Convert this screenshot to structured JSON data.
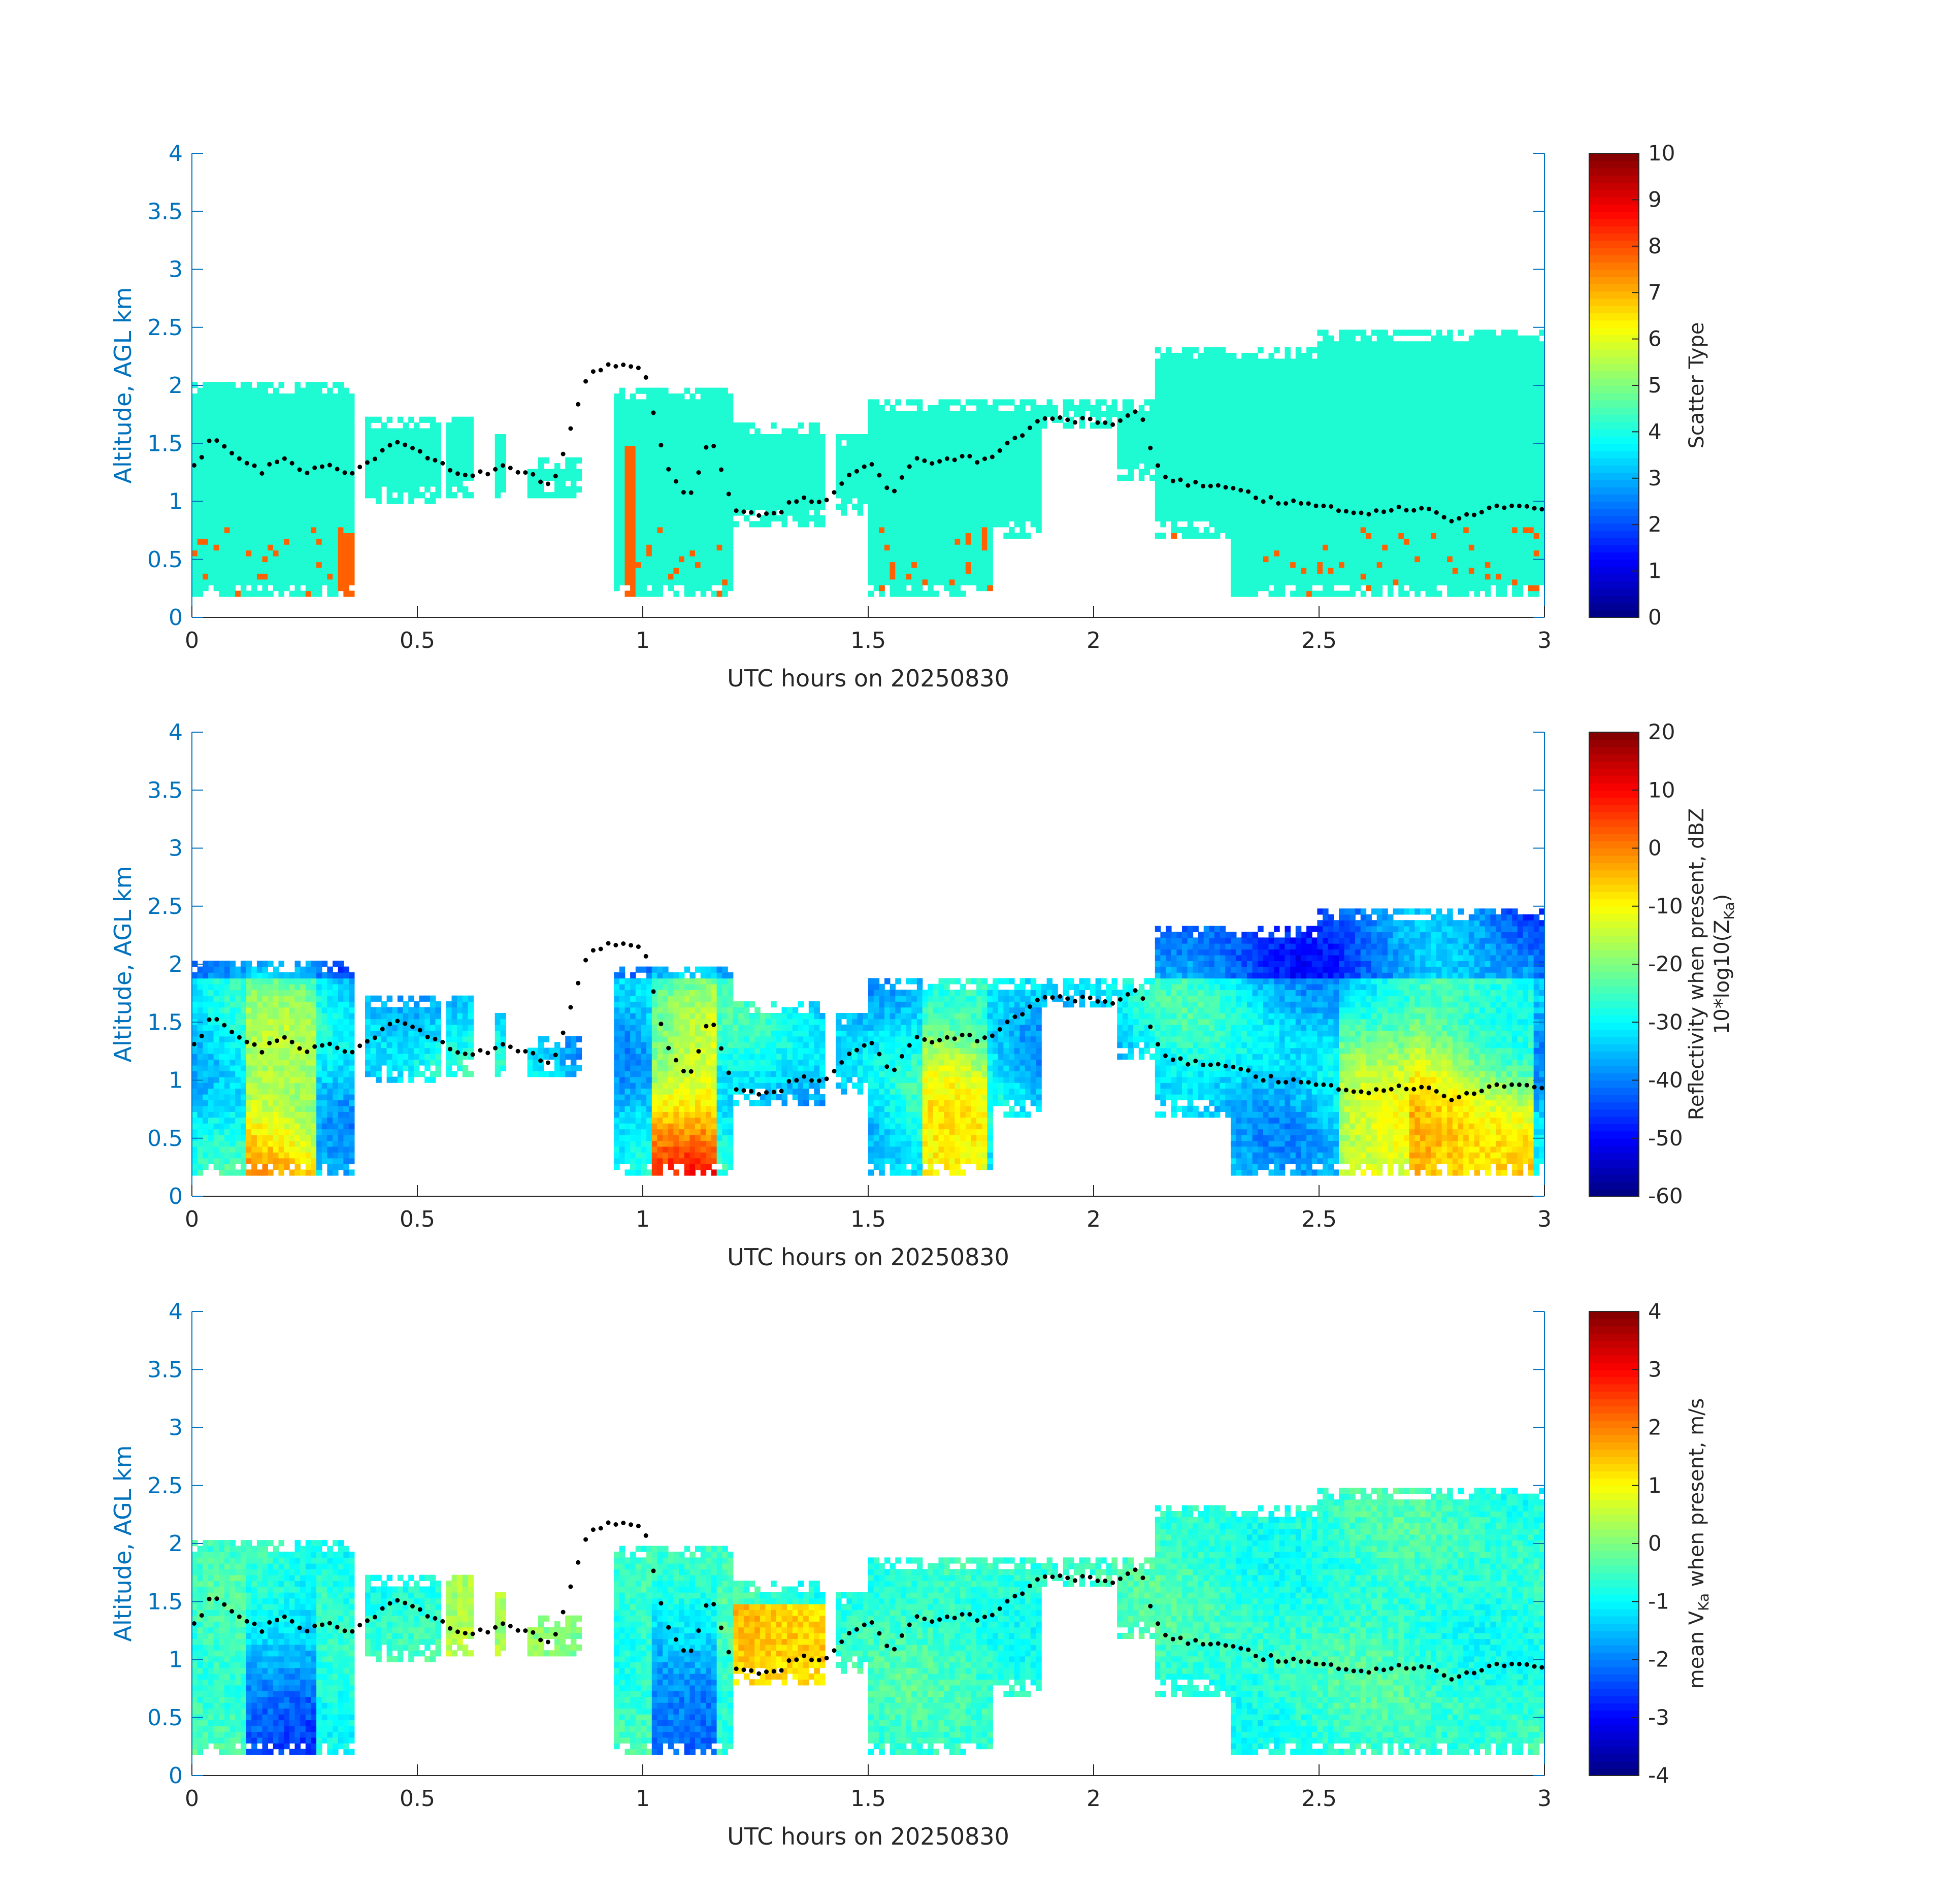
{
  "colors": {
    "axis_y": "#0072BD",
    "axis_x": "#262626",
    "bins": "#1efad2",
    "marker": "#000000"
  },
  "chart_data": [
    {
      "type": "heatmap",
      "xlabel": "UTC hours on 20250830",
      "ylabel": "Altitude, AGL km",
      "xlim": [
        0,
        3
      ],
      "ylim": [
        0,
        4
      ],
      "xticks": [
        "0",
        "0.5",
        "1",
        "1.5",
        "2",
        "2.5",
        "3"
      ],
      "yticks": [
        "0",
        "0.5",
        "1",
        "1.5",
        "2",
        "2.5",
        "3",
        "3.5",
        "4"
      ],
      "colorbar": {
        "label": "Scatter Type",
        "clim": [
          0,
          10
        ],
        "ticks": [
          "0",
          "1",
          "2",
          "3",
          "4",
          "5",
          "6",
          "7",
          "8",
          "9",
          "10"
        ]
      },
      "field": "scatter_type"
    },
    {
      "type": "heatmap",
      "xlabel": "UTC hours on 20250830",
      "ylabel": "Altitude, AGL km",
      "xlim": [
        0,
        3
      ],
      "ylim": [
        0,
        4
      ],
      "xticks": [
        "0",
        "0.5",
        "1",
        "1.5",
        "2",
        "2.5",
        "3"
      ],
      "yticks": [
        "0",
        "0.5",
        "1",
        "1.5",
        "2",
        "2.5",
        "3",
        "3.5",
        "4"
      ],
      "colorbar": {
        "label_line1": "Reflectivity when present, dBZ",
        "label_line2_pre": "10*log10(Z",
        "label_line2_sub": "Ka",
        "label_line2_post": ")",
        "clim": [
          -60,
          20
        ],
        "ticks": [
          "-60",
          "-50",
          "-40",
          "-30",
          "-20",
          "-10",
          "0",
          "10",
          "20"
        ]
      },
      "field": "reflectivity"
    },
    {
      "type": "heatmap",
      "xlabel": "UTC hours on 20250830",
      "ylabel": "Altitude, AGL km",
      "xlim": [
        0,
        3
      ],
      "ylim": [
        0,
        4
      ],
      "xticks": [
        "0",
        "0.5",
        "1",
        "1.5",
        "2",
        "2.5",
        "3"
      ],
      "yticks": [
        "0",
        "0.5",
        "1",
        "1.5",
        "2",
        "2.5",
        "3",
        "3.5",
        "4"
      ],
      "colorbar": {
        "label_pre": "mean V",
        "label_sub": "Ka",
        "label_post": " when present, m/s",
        "clim": [
          -4,
          4
        ],
        "ticks": [
          "-4",
          "-3",
          "-2",
          "-1",
          "0",
          "1",
          "2",
          "3",
          "4"
        ]
      },
      "field": "velocity"
    }
  ],
  "echo_segments": [
    {
      "t0": 0.0,
      "t1": 0.36,
      "base": 0.18,
      "top": 2.05
    },
    {
      "t0": 0.38,
      "t1": 0.55,
      "base": 1.0,
      "top": 1.75
    },
    {
      "t0": 0.56,
      "t1": 0.62,
      "base": 1.05,
      "top": 1.75
    },
    {
      "t0": 0.67,
      "t1": 0.7,
      "base": 1.05,
      "top": 1.6
    },
    {
      "t0": 0.75,
      "t1": 0.86,
      "base": 1.05,
      "top": 1.4
    },
    {
      "t0": 0.94,
      "t1": 1.2,
      "base": 0.18,
      "top": 2.0
    },
    {
      "t0": 1.2,
      "t1": 1.4,
      "base": 0.8,
      "top": 1.7
    },
    {
      "t0": 1.43,
      "t1": 1.5,
      "base": 0.9,
      "top": 1.6
    },
    {
      "t0": 1.5,
      "t1": 1.78,
      "base": 0.18,
      "top": 1.9
    },
    {
      "t0": 1.78,
      "t1": 1.88,
      "base": 0.7,
      "top": 1.88
    },
    {
      "t0": 1.88,
      "t1": 2.05,
      "base": 1.65,
      "top": 1.88
    },
    {
      "t0": 2.05,
      "t1": 2.14,
      "base": 1.2,
      "top": 1.88
    },
    {
      "t0": 2.14,
      "t1": 2.3,
      "base": 0.7,
      "top": 2.35
    },
    {
      "t0": 2.3,
      "t1": 2.5,
      "base": 0.18,
      "top": 2.35
    },
    {
      "t0": 2.5,
      "t1": 3.0,
      "base": 0.18,
      "top": 2.5
    }
  ],
  "cloud_base_t": [
    0.0,
    0.05,
    0.1,
    0.15,
    0.2,
    0.25,
    0.3,
    0.35,
    0.45,
    0.5,
    0.6,
    0.7,
    0.8,
    0.88,
    0.92,
    0.96,
    1.0,
    1.05,
    1.1,
    1.15,
    1.2,
    1.25,
    1.3,
    1.35,
    1.4,
    1.5,
    1.55,
    1.6,
    1.65,
    1.7,
    1.75,
    1.8,
    1.85,
    1.9,
    1.95,
    2.0,
    2.05,
    2.1,
    2.15,
    2.2,
    2.3,
    2.4,
    2.5,
    2.6,
    2.7,
    2.8,
    2.9,
    3.0
  ],
  "cloud_base_km": [
    1.3,
    1.55,
    1.4,
    1.25,
    1.4,
    1.25,
    1.3,
    1.2,
    1.55,
    1.45,
    1.2,
    1.3,
    1.15,
    2.1,
    2.15,
    2.18,
    2.18,
    1.35,
    1.0,
    1.55,
    0.95,
    0.9,
    0.88,
    1.05,
    1.0,
    1.35,
    1.05,
    1.35,
    1.3,
    1.4,
    1.35,
    1.45,
    1.6,
    1.75,
    1.7,
    1.72,
    1.65,
    1.8,
    1.2,
    1.15,
    1.1,
    1.0,
    0.95,
    0.9,
    0.95,
    0.85,
    0.95,
    0.95
  ]
}
